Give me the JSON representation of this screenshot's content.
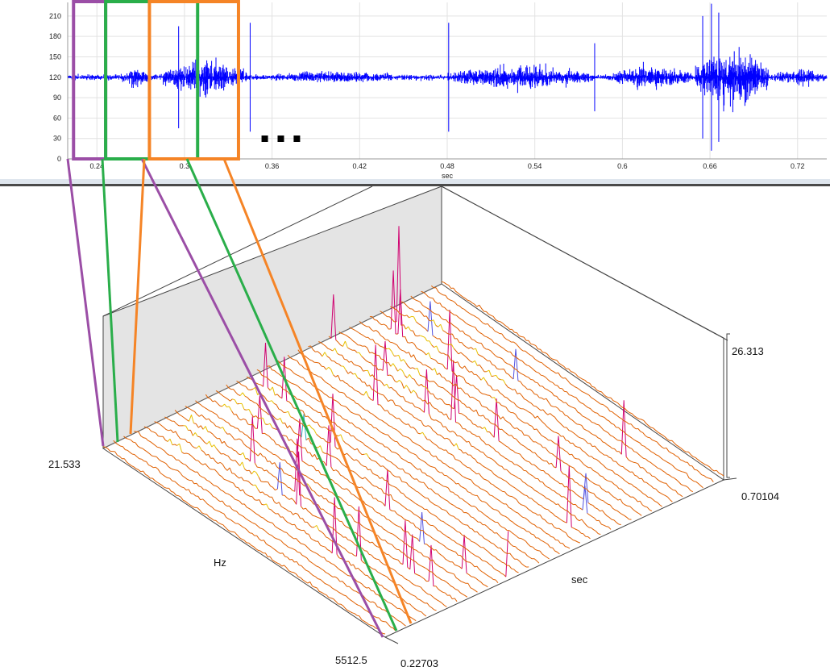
{
  "waveform": {
    "xlabel": "sec",
    "y_ticks": [
      "0",
      "30",
      "60",
      "90",
      "120",
      "150",
      "180",
      "210"
    ],
    "x_ticks": [
      "0.24",
      "0.3",
      "0.36",
      "0.42",
      "0.48",
      "0.54",
      "0.6",
      "0.66",
      "0.72"
    ],
    "trace_color": "#0000ff",
    "highlight_boxes": [
      {
        "name": "purple-window",
        "color": "#9b4ea6",
        "x_start": 0.224,
        "x_end": 0.246
      },
      {
        "name": "green-window",
        "color": "#2aae4a",
        "x_start": 0.246,
        "x_end": 0.309
      },
      {
        "name": "orange-window",
        "color": "#f58426",
        "x_start": 0.276,
        "x_end": 0.337
      }
    ]
  },
  "spectrogram": {
    "hz_label": "Hz",
    "sec_label": "sec",
    "hz_min_label": "21.533",
    "hz_max_label": "5512.5",
    "sec_min_label": "0.22703",
    "sec_max_label": "0.70104",
    "amp_max_label": "26.313"
  },
  "chart_data": [
    {
      "type": "line",
      "title": "",
      "xlabel": "sec",
      "ylabel": "",
      "xlim": [
        0.22,
        0.74
      ],
      "ylim": [
        0,
        230
      ],
      "x_ticks": [
        0.24,
        0.3,
        0.36,
        0.42,
        0.48,
        0.54,
        0.6,
        0.66,
        0.72
      ],
      "y_ticks": [
        0,
        30,
        60,
        90,
        120,
        150,
        180,
        210
      ],
      "baseline": 120,
      "bursts": [
        {
          "x_start": 0.257,
          "x_end": 0.275,
          "amplitude": 25
        },
        {
          "x_start": 0.285,
          "x_end": 0.343,
          "amplitude": 45
        },
        {
          "x_start": 0.35,
          "x_end": 0.46,
          "amplitude": 15
        },
        {
          "x_start": 0.48,
          "x_end": 0.58,
          "amplitude": 30
        },
        {
          "x_start": 0.59,
          "x_end": 0.65,
          "amplitude": 30
        },
        {
          "x_start": 0.65,
          "x_end": 0.7,
          "amplitude": 80
        },
        {
          "x_start": 0.7,
          "x_end": 0.74,
          "amplitude": 20
        }
      ],
      "grid": true
    },
    {
      "type": "line",
      "title": "",
      "xlabel": "sec",
      "ylabel": "Hz",
      "hz_range": [
        21.533,
        5512.5
      ],
      "sec_range": [
        0.22703,
        0.70104
      ],
      "z_max": 26.313
    }
  ]
}
